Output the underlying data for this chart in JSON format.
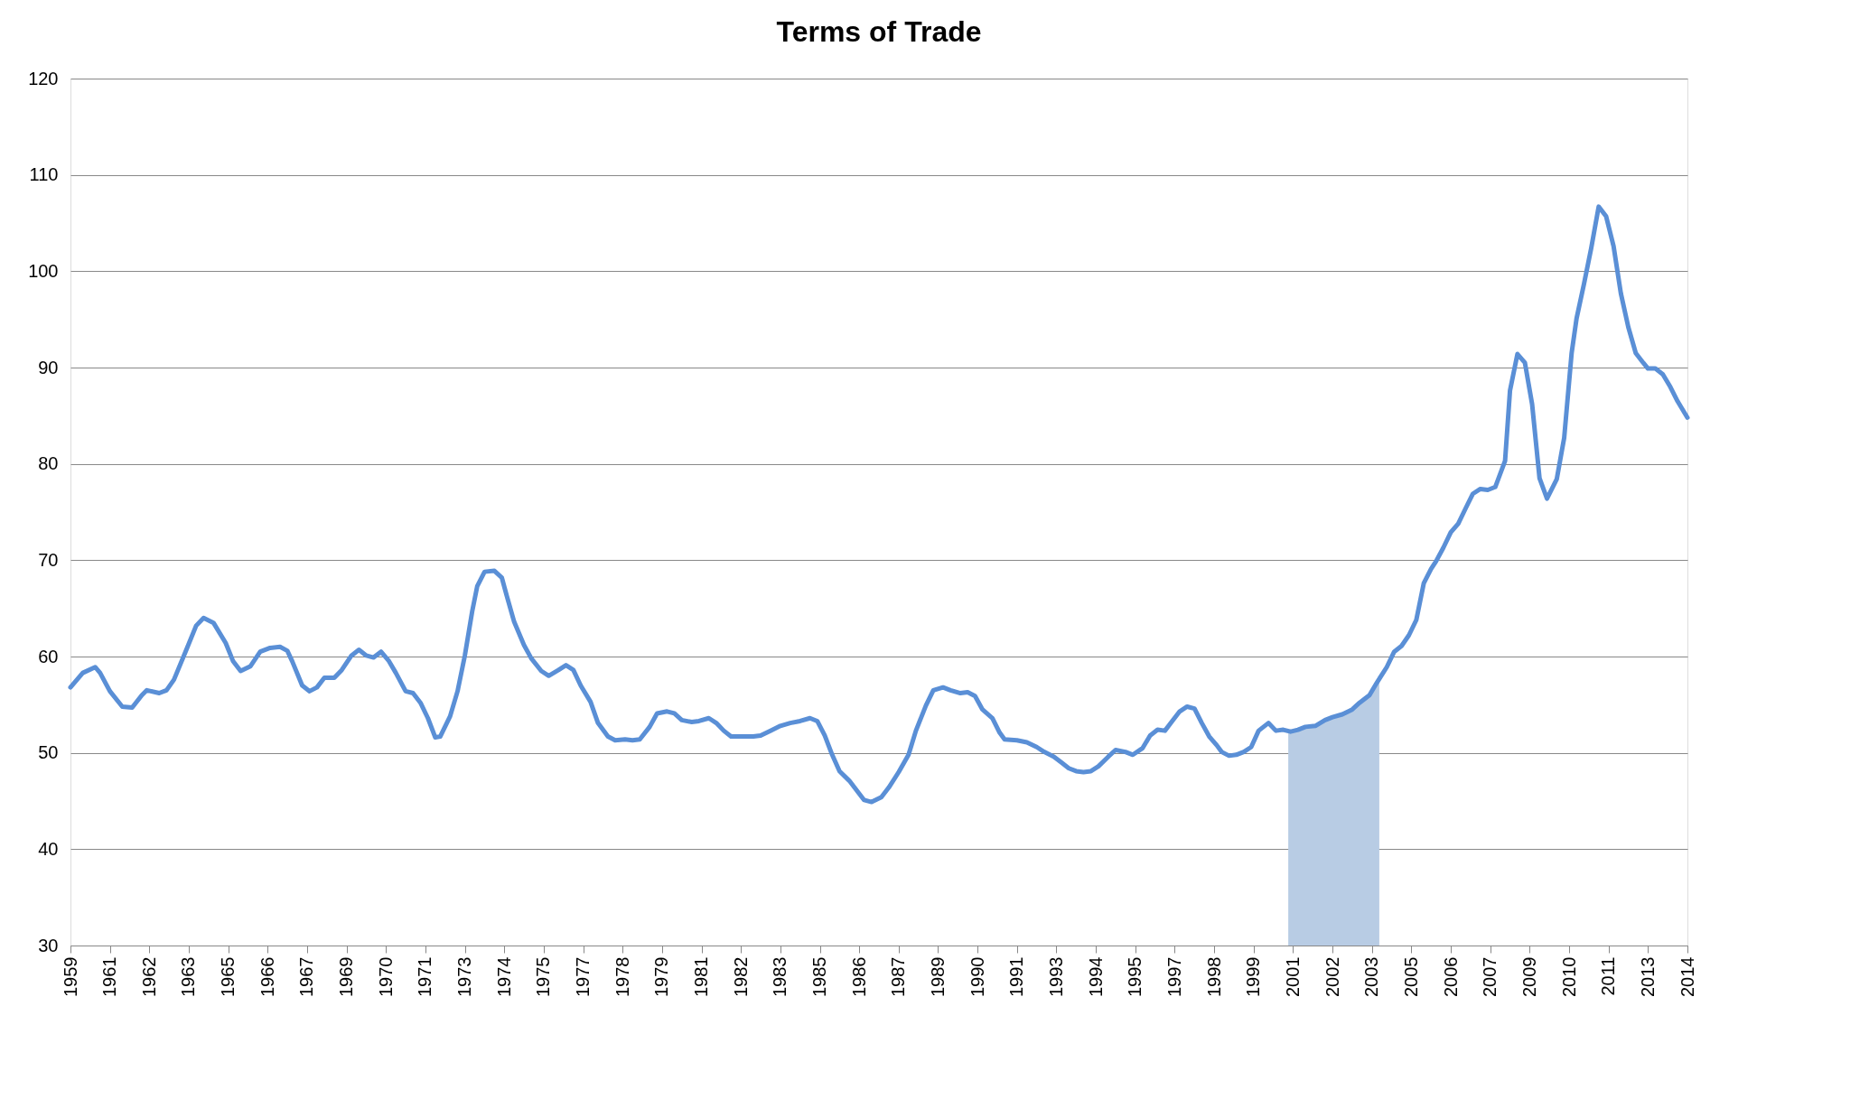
{
  "chart_data": {
    "type": "line",
    "title": "Terms of Trade",
    "xlim": [
      "1959-12",
      "2014-08"
    ],
    "xticks": [
      {
        "value": "1959-12",
        "label": "1959"
      },
      {
        "value": "1961-04",
        "label": "1961"
      },
      {
        "value": "1962-08",
        "label": "1962"
      },
      {
        "value": "1963-12",
        "label": "1963"
      },
      {
        "value": "1965-04",
        "label": "1965"
      },
      {
        "value": "1966-08",
        "label": "1966"
      },
      {
        "value": "1967-12",
        "label": "1967"
      },
      {
        "value": "1969-04",
        "label": "1969"
      },
      {
        "value": "1970-08",
        "label": "1970"
      },
      {
        "value": "1971-12",
        "label": "1971"
      },
      {
        "value": "1973-04",
        "label": "1973"
      },
      {
        "value": "1974-08",
        "label": "1974"
      },
      {
        "value": "1975-12",
        "label": "1975"
      },
      {
        "value": "1977-04",
        "label": "1977"
      },
      {
        "value": "1978-08",
        "label": "1978"
      },
      {
        "value": "1979-12",
        "label": "1979"
      },
      {
        "value": "1981-04",
        "label": "1981"
      },
      {
        "value": "1982-08",
        "label": "1982"
      },
      {
        "value": "1983-12",
        "label": "1983"
      },
      {
        "value": "1985-04",
        "label": "1985"
      },
      {
        "value": "1986-08",
        "label": "1986"
      },
      {
        "value": "1987-12",
        "label": "1987"
      },
      {
        "value": "1989-04",
        "label": "1989"
      },
      {
        "value": "1990-08",
        "label": "1990"
      },
      {
        "value": "1991-12",
        "label": "1991"
      },
      {
        "value": "1993-04",
        "label": "1993"
      },
      {
        "value": "1994-08",
        "label": "1994"
      },
      {
        "value": "1995-12",
        "label": "1995"
      },
      {
        "value": "1997-04",
        "label": "1997"
      },
      {
        "value": "1998-08",
        "label": "1998"
      },
      {
        "value": "1999-12",
        "label": "1999"
      },
      {
        "value": "2001-04",
        "label": "2001"
      },
      {
        "value": "2002-08",
        "label": "2002"
      },
      {
        "value": "2003-12",
        "label": "2003"
      },
      {
        "value": "2005-04",
        "label": "2005"
      },
      {
        "value": "2006-08",
        "label": "2006"
      },
      {
        "value": "2007-12",
        "label": "2007"
      },
      {
        "value": "2009-04",
        "label": "2009"
      },
      {
        "value": "2010-08",
        "label": "2010"
      },
      {
        "value": "2011-12",
        "label": "2011"
      },
      {
        "value": "2013-04",
        "label": "2013"
      },
      {
        "value": "2014-08",
        "label": "2014"
      }
    ],
    "ylim": [
      30,
      120
    ],
    "yticks": [
      30,
      40,
      50,
      60,
      70,
      80,
      90,
      100,
      110,
      120
    ],
    "grid": "y",
    "marker": "none",
    "line_style": "solid",
    "bands": [
      {
        "axis": "x",
        "from": "2001-02",
        "to": "2004-03",
        "color": "#b8cce4"
      }
    ],
    "series": [
      {
        "color": "#5a8fd6",
        "x": [
          "1959-12",
          "1960-05",
          "1960-10",
          "1960-12",
          "1961-04",
          "1961-09",
          "1962-01",
          "1962-05",
          "1962-07",
          "1962-12",
          "1963-03",
          "1963-06",
          "1963-11",
          "1964-03",
          "1964-06",
          "1964-10",
          "1965-03",
          "1965-06",
          "1965-09",
          "1966-01",
          "1966-05",
          "1966-09",
          "1967-01",
          "1967-04",
          "1967-06",
          "1967-10",
          "1968-01",
          "1968-04",
          "1968-07",
          "1968-11",
          "1969-02",
          "1969-06",
          "1969-09",
          "1969-12",
          "1970-03",
          "1970-06",
          "1970-09",
          "1970-12",
          "1971-04",
          "1971-07",
          "1971-10",
          "1972-01",
          "1972-04",
          "1972-06",
          "1972-10",
          "1973-01",
          "1973-04",
          "1973-07",
          "1973-09",
          "1973-12",
          "1974-04",
          "1974-07",
          "1974-09",
          "1974-12",
          "1975-04",
          "1975-07",
          "1975-11",
          "1976-02",
          "1976-06",
          "1976-09",
          "1976-12",
          "1977-03",
          "1977-07",
          "1977-10",
          "1978-02",
          "1978-05",
          "1978-09",
          "1978-12",
          "1979-03",
          "1979-07",
          "1979-10",
          "1980-02",
          "1980-05",
          "1980-08",
          "1980-12",
          "1981-03",
          "1981-07",
          "1981-10",
          "1982-01",
          "1982-04",
          "1982-08",
          "1983-01",
          "1983-04",
          "1983-08",
          "1983-12",
          "1984-04",
          "1984-08",
          "1984-12",
          "1985-03",
          "1985-06",
          "1985-09",
          "1985-12",
          "1986-04",
          "1986-07",
          "1986-10",
          "1987-01",
          "1987-05",
          "1987-08",
          "1987-12",
          "1988-04",
          "1988-07",
          "1988-11",
          "1989-02",
          "1989-06",
          "1989-09",
          "1990-01",
          "1990-04",
          "1990-07",
          "1990-10",
          "1991-02",
          "1991-05",
          "1991-07",
          "1991-12",
          "1992-04",
          "1992-08",
          "1992-11",
          "1993-03",
          "1993-06",
          "1993-09",
          "1993-12",
          "1994-03",
          "1994-06",
          "1994-09",
          "1995-01",
          "1995-04",
          "1995-08",
          "1995-11",
          "1996-03",
          "1996-06",
          "1996-09",
          "1996-12",
          "1997-03",
          "1997-06",
          "1997-09",
          "1997-12",
          "1998-03",
          "1998-06",
          "1998-09",
          "1998-11",
          "1999-02",
          "1999-05",
          "1999-08",
          "1999-11",
          "2000-02",
          "2000-06",
          "2000-09",
          "2000-12",
          "2001-03",
          "2001-06",
          "2001-09",
          "2002-01",
          "2002-05",
          "2002-08",
          "2002-12",
          "2003-04",
          "2003-07",
          "2003-11",
          "2004-02",
          "2004-06",
          "2004-09",
          "2004-12",
          "2005-03",
          "2005-06",
          "2005-09",
          "2005-12",
          "2006-02",
          "2006-05",
          "2006-08",
          "2006-11",
          "2007-02",
          "2007-05",
          "2007-08",
          "2007-11",
          "2008-02",
          "2008-06",
          "2008-08",
          "2008-11",
          "2009-02",
          "2009-05",
          "2009-08",
          "2009-11",
          "2010-03",
          "2010-06",
          "2010-09",
          "2010-11",
          "2011-02",
          "2011-05",
          "2011-08",
          "2011-11",
          "2012-02",
          "2012-05",
          "2012-08",
          "2012-11",
          "2013-02",
          "2013-04",
          "2013-07",
          "2013-10",
          "2014-01",
          "2014-04",
          "2014-08"
        ],
        "values": [
          56.8,
          58.3,
          58.9,
          58.3,
          56.4,
          54.8,
          54.7,
          56.0,
          56.5,
          56.2,
          56.5,
          57.6,
          60.7,
          63.2,
          64.0,
          63.5,
          61.4,
          59.5,
          58.5,
          59.0,
          60.5,
          60.9,
          61.0,
          60.6,
          59.5,
          57.0,
          56.4,
          56.8,
          57.8,
          57.8,
          58.6,
          60.1,
          60.7,
          60.1,
          59.9,
          60.5,
          59.6,
          58.3,
          56.4,
          56.2,
          55.2,
          53.6,
          51.6,
          51.7,
          53.8,
          56.4,
          60.1,
          64.7,
          67.3,
          68.8,
          68.9,
          68.2,
          66.3,
          63.6,
          61.2,
          59.8,
          58.5,
          58.0,
          58.6,
          59.1,
          58.6,
          57.0,
          55.3,
          53.1,
          51.7,
          51.3,
          51.4,
          51.3,
          51.4,
          52.7,
          54.1,
          54.3,
          54.1,
          53.4,
          53.2,
          53.3,
          53.6,
          53.1,
          52.3,
          51.7,
          51.7,
          51.7,
          51.8,
          52.3,
          52.8,
          53.1,
          53.3,
          53.6,
          53.3,
          51.8,
          49.8,
          48.1,
          47.1,
          46.1,
          45.1,
          44.9,
          45.4,
          46.4,
          48.0,
          49.8,
          52.3,
          54.9,
          56.5,
          56.8,
          56.5,
          56.2,
          56.3,
          55.9,
          54.5,
          53.6,
          52.1,
          51.4,
          51.3,
          51.1,
          50.6,
          50.1,
          49.6,
          49.0,
          48.4,
          48.1,
          48.0,
          48.1,
          48.6,
          49.6,
          50.3,
          50.1,
          49.8,
          50.5,
          51.8,
          52.4,
          52.3,
          53.3,
          54.3,
          54.8,
          54.6,
          53.1,
          51.7,
          50.8,
          50.1,
          49.7,
          49.8,
          50.1,
          50.6,
          52.3,
          53.1,
          52.3,
          52.4,
          52.2,
          52.4,
          52.7,
          52.8,
          53.4,
          53.7,
          54.0,
          54.5,
          55.2,
          56.0,
          57.3,
          58.9,
          60.5,
          61.1,
          62.2,
          63.8,
          67.6,
          69.1,
          69.9,
          71.3,
          72.9,
          73.8,
          75.4,
          76.9,
          77.4,
          77.3,
          77.6,
          80.3,
          87.6,
          91.4,
          90.5,
          86.2,
          78.5,
          76.4,
          78.4,
          82.7,
          91.5,
          95.1,
          98.7,
          102.4,
          106.7,
          105.7,
          102.6,
          97.7,
          94.2,
          91.5,
          90.5,
          89.9,
          89.9,
          89.3,
          88.0,
          86.5,
          84.8
        ]
      }
    ]
  }
}
